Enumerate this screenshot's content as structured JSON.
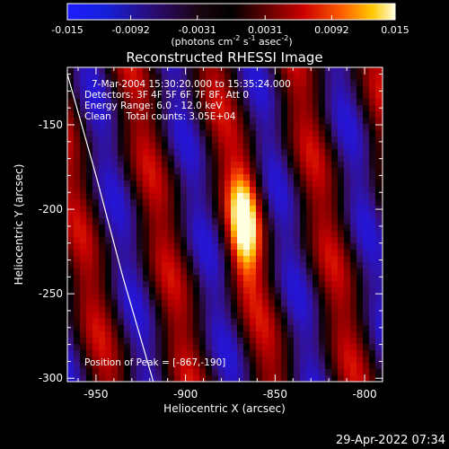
{
  "colorbar": {
    "tick_labels": [
      "-0.015",
      "-0.0092",
      "-0.0031",
      "0.0031",
      "0.0092",
      "0.015"
    ],
    "tick_values": [
      -0.015,
      -0.0092,
      -0.0031,
      0.0031,
      0.0092,
      0.015
    ],
    "range": [
      -0.015,
      0.015
    ],
    "unit_main": "(photons cm",
    "unit_sup1": "-2",
    "unit_mid": " s",
    "unit_sup2": "-1",
    "unit_end": " asec",
    "unit_sup3": "-2",
    "unit_close": ")"
  },
  "chart_data": {
    "type": "heatmap",
    "title": "Reconstructed RHESSI Image",
    "xlabel": "Heliocentric X (arcsec)",
    "ylabel": "Heliocentric Y (arcsec)",
    "xlim": [
      -966,
      -790
    ],
    "ylim": [
      -302,
      -116
    ],
    "x_ticks": [
      -950,
      -900,
      -850,
      -800
    ],
    "y_ticks": [
      -150,
      -200,
      -250,
      -300
    ],
    "x_tick_labels": [
      "-950",
      "-900",
      "-850",
      "-800"
    ],
    "y_tick_labels": [
      "-150",
      "-200",
      "-250",
      "-300"
    ],
    "annotations": [
      "7-Mar-2004 15:30:20.000 to 15:35:24.000",
      "Detectors: 3F 4F 5F 6F 7F 8F, Att 0",
      "Energy Range: 6.0 - 12.0 keV",
      "Clean     Total counts: 3.05E+04"
    ],
    "peak_label": "Position of Peak = [-867,-190]",
    "peak": [
      -867,
      -190
    ],
    "limb_curve": [
      [
        -966,
        -120
      ],
      [
        -950,
        -180
      ],
      [
        -935,
        -240
      ],
      [
        -918,
        -302
      ]
    ],
    "colormap": "hessi_rainbow"
  },
  "footer": {
    "date": "29-Apr-2022 07:34"
  }
}
